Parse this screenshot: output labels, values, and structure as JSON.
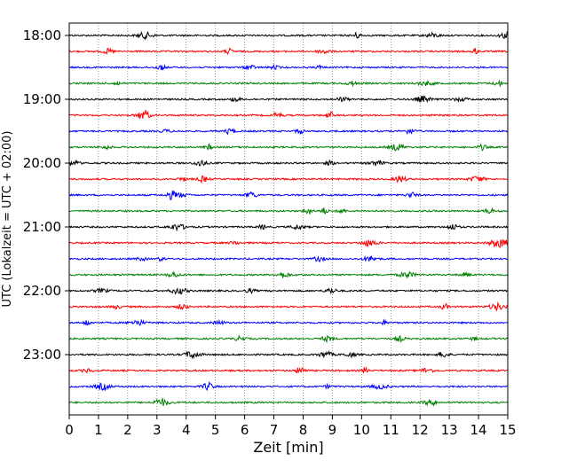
{
  "chart_data": {
    "type": "line",
    "title": "",
    "xlabel": "Zeit  [min]",
    "ylabel": "UTC (Lokalzeit = UTC + 02:00)",
    "xlim": [
      0,
      15
    ],
    "x_ticks": [
      0,
      1,
      2,
      3,
      4,
      5,
      6,
      7,
      8,
      9,
      10,
      11,
      12,
      13,
      14,
      15
    ],
    "x_tick_labels": [
      "0",
      "1",
      "2",
      "3",
      "4",
      "5",
      "6",
      "7",
      "8",
      "9",
      "10",
      "11",
      "12",
      "13",
      "14",
      "15"
    ],
    "y_tick_labels": [
      "18:00",
      "19:00",
      "20:00",
      "21:00",
      "22:00",
      "23:00"
    ],
    "y_tick_hours": [
      18,
      19,
      20,
      21,
      22,
      23
    ],
    "trace_minutes": 15,
    "trace_start_times": [
      "18:00",
      "18:15",
      "18:30",
      "18:45",
      "19:00",
      "19:15",
      "19:30",
      "19:45",
      "20:00",
      "20:15",
      "20:30",
      "20:45",
      "21:00",
      "21:15",
      "21:30",
      "21:45",
      "22:00",
      "22:15",
      "22:30",
      "22:45",
      "23:00",
      "23:15",
      "23:30",
      "23:45"
    ],
    "trace_color_cycle": [
      "#000000",
      "#ff0000",
      "#0000ff",
      "#008000"
    ],
    "grid": "vertical dotted at each minute",
    "legend": "none",
    "signal": "seismogram noise traces, one per 15-minute interval"
  }
}
